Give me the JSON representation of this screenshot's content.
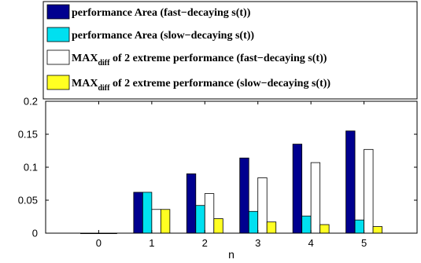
{
  "chart_data": {
    "type": "bar",
    "title": "",
    "xlabel": "n",
    "ylabel": "",
    "categories": [
      "0",
      "1",
      "2",
      "3",
      "4",
      "5"
    ],
    "xlim": [
      -1,
      6
    ],
    "ylim": [
      0,
      0.2
    ],
    "yticks": [
      "0",
      "0.05",
      "0.1",
      "0.15",
      "0.2"
    ],
    "grid": false,
    "legend_position": "top",
    "series": [
      {
        "name": "performance Area (fast−decaying s(t))",
        "color": "#00008f",
        "values": [
          0,
          0.062,
          0.09,
          0.114,
          0.135,
          0.155
        ]
      },
      {
        "name": " performance Area (slow−decaying s(t))",
        "color": "#00e0f0",
        "values": [
          0,
          0.062,
          0.042,
          0.033,
          0.026,
          0.02
        ]
      },
      {
        "name_parts": [
          "MAX",
          "diff",
          " of 2 extreme performance (fast−decaying s(t))"
        ],
        "color": "#ffffff",
        "values": [
          0,
          0.036,
          0.06,
          0.084,
          0.107,
          0.127
        ]
      },
      {
        "name_parts": [
          "MAX",
          "diff",
          " of 2 extreme performance (slow−decaying s(t))"
        ],
        "color": "#ffff22",
        "values": [
          0,
          0.036,
          0.022,
          0.017,
          0.013,
          0.01
        ]
      }
    ]
  }
}
